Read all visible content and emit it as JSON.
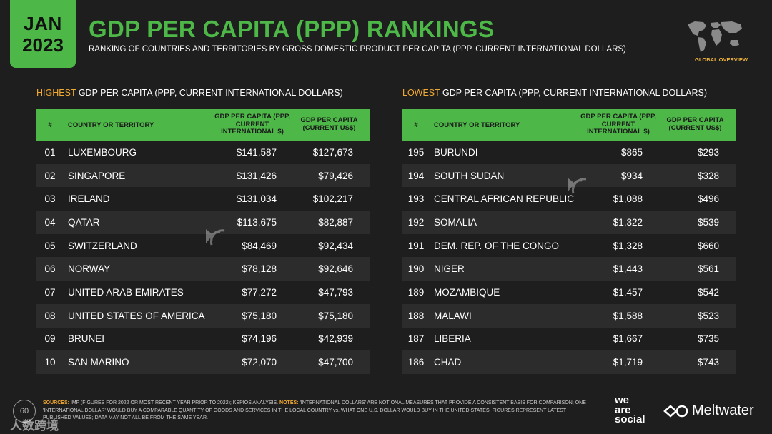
{
  "badge": {
    "month": "JAN",
    "year": "2023"
  },
  "header": {
    "title": "GDP PER CAPITA (PPP) RANKINGS",
    "subtitle": "RANKING OF COUNTRIES AND TERRITORIES BY GROSS DOMESTIC PRODUCT PER CAPITA (PPP, CURRENT INTERNATIONAL DOLLARS)",
    "global_label": "GLOBAL OVERVIEW"
  },
  "highest": {
    "title_highlight": "HIGHEST",
    "title_rest": " GDP PER CAPITA (PPP, CURRENT INTERNATIONAL DOLLARS)",
    "columns": {
      "rank": "#",
      "name": "COUNTRY OR TERRITORY",
      "ppp": "GDP PER CAPITA (PPP, CURRENT INTERNATIONAL $)",
      "usd": "GDP PER CAPITA (CURRENT US$)"
    },
    "rows": [
      {
        "rank": "01",
        "name": "LUXEMBOURG",
        "ppp": "$141,587",
        "usd": "$127,673"
      },
      {
        "rank": "02",
        "name": "SINGAPORE",
        "ppp": "$131,426",
        "usd": "$79,426"
      },
      {
        "rank": "03",
        "name": "IRELAND",
        "ppp": "$131,034",
        "usd": "$102,217"
      },
      {
        "rank": "04",
        "name": "QATAR",
        "ppp": "$113,675",
        "usd": "$82,887"
      },
      {
        "rank": "05",
        "name": "SWITZERLAND",
        "ppp": "$84,469",
        "usd": "$92,434"
      },
      {
        "rank": "06",
        "name": "NORWAY",
        "ppp": "$78,128",
        "usd": "$92,646"
      },
      {
        "rank": "07",
        "name": "UNITED ARAB EMIRATES",
        "ppp": "$77,272",
        "usd": "$47,793"
      },
      {
        "rank": "08",
        "name": "UNITED STATES OF AMERICA",
        "ppp": "$75,180",
        "usd": "$75,180"
      },
      {
        "rank": "09",
        "name": "BRUNEI",
        "ppp": "$74,196",
        "usd": "$42,939"
      },
      {
        "rank": "10",
        "name": "SAN MARINO",
        "ppp": "$72,070",
        "usd": "$47,700"
      }
    ]
  },
  "lowest": {
    "title_highlight": "LOWEST",
    "title_rest": " GDP PER CAPITA (PPP, CURRENT INTERNATIONAL DOLLARS)",
    "columns": {
      "rank": "#",
      "name": "COUNTRY OR TERRITORY",
      "ppp": "GDP PER CAPITA (PPP, CURRENT INTERNATIONAL $)",
      "usd": "GDP PER CAPITA (CURRENT US$)"
    },
    "rows": [
      {
        "rank": "195",
        "name": "BURUNDI",
        "ppp": "$865",
        "usd": "$293"
      },
      {
        "rank": "194",
        "name": "SOUTH SUDAN",
        "ppp": "$934",
        "usd": "$328"
      },
      {
        "rank": "193",
        "name": "CENTRAL AFRICAN REPUBLIC",
        "ppp": "$1,088",
        "usd": "$496"
      },
      {
        "rank": "192",
        "name": "SOMALIA",
        "ppp": "$1,322",
        "usd": "$539"
      },
      {
        "rank": "191",
        "name": "DEM. REP. OF THE CONGO",
        "ppp": "$1,328",
        "usd": "$660"
      },
      {
        "rank": "190",
        "name": "NIGER",
        "ppp": "$1,443",
        "usd": "$561"
      },
      {
        "rank": "189",
        "name": "MOZAMBIQUE",
        "ppp": "$1,457",
        "usd": "$542"
      },
      {
        "rank": "188",
        "name": "MALAWI",
        "ppp": "$1,588",
        "usd": "$523"
      },
      {
        "rank": "187",
        "name": "LIBERIA",
        "ppp": "$1,667",
        "usd": "$735"
      },
      {
        "rank": "186",
        "name": "CHAD",
        "ppp": "$1,719",
        "usd": "$743"
      }
    ]
  },
  "footer": {
    "sources_label": "SOURCES:",
    "sources_text": " IMF (FIGURES FOR 2022 OR MOST RECENT YEAR PRIOR TO 2022); KEPIOS ANALYSIS. ",
    "notes_label": "NOTES:",
    "notes_text": " 'INTERNATIONAL DOLLARS' ARE NOTIONAL MEASURES THAT PROVIDE A CONSISTENT BASIS FOR COMPARISON; ONE 'INTERNATIONAL DOLLAR' WOULD BUY A COMPARABLE QUANTITY OF GOODS AND SERVICES IN THE LOCAL COUNTRY vs. WHAT ONE U.S. DOLLAR WOULD BUY IN THE UNITED STATES. FIGURES REPRESENT LATEST PUBLISHED VALUES; DATA MAY NOT ALL BE FROM THE SAME YEAR."
  },
  "logos": {
    "we_are_social": [
      "we",
      "are",
      "social"
    ],
    "meltwater": "Meltwater"
  },
  "page_number": "60",
  "watermark": "人数跨境"
}
